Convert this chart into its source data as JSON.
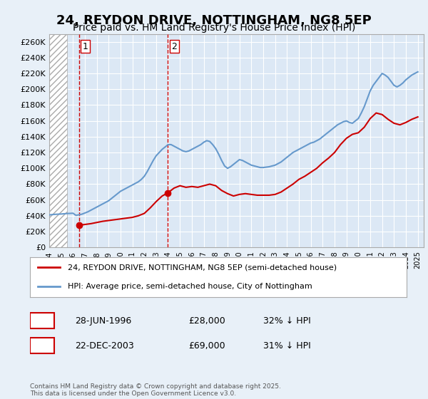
{
  "title": "24, REYDON DRIVE, NOTTINGHAM, NG8 5EP",
  "subtitle": "Price paid vs. HM Land Registry's House Price Index (HPI)",
  "title_fontsize": 13,
  "subtitle_fontsize": 10,
  "bg_color": "#e8f0f8",
  "plot_bg_color": "#dce8f5",
  "grid_color": "#ffffff",
  "ylim": [
    0,
    270000
  ],
  "yticks": [
    0,
    20000,
    40000,
    60000,
    80000,
    100000,
    120000,
    140000,
    160000,
    180000,
    200000,
    220000,
    240000,
    260000
  ],
  "xlim_start": 1994.0,
  "xlim_end": 2025.5,
  "hatch_end": 1995.5,
  "red_line_color": "#cc0000",
  "blue_line_color": "#6699cc",
  "vline_color": "#cc0000",
  "purchase1_year": 1996.49,
  "purchase1_price": 28000,
  "purchase2_year": 2003.98,
  "purchase2_price": 69000,
  "legend_label1": "24, REYDON DRIVE, NOTTINGHAM, NG8 5EP (semi-detached house)",
  "legend_label2": "HPI: Average price, semi-detached house, City of Nottingham",
  "table_row1": [
    "1",
    "28-JUN-1996",
    "£28,000",
    "32% ↓ HPI"
  ],
  "table_row2": [
    "2",
    "22-DEC-2003",
    "£69,000",
    "31% ↓ HPI"
  ],
  "footnote": "Contains HM Land Registry data © Crown copyright and database right 2025.\nThis data is licensed under the Open Government Licence v3.0.",
  "hpi_years": [
    1994.0,
    1994.25,
    1994.5,
    1994.75,
    1995.0,
    1995.25,
    1995.5,
    1995.75,
    1996.0,
    1996.25,
    1996.5,
    1996.75,
    1997.0,
    1997.25,
    1997.5,
    1997.75,
    1998.0,
    1998.25,
    1998.5,
    1998.75,
    1999.0,
    1999.25,
    1999.5,
    1999.75,
    2000.0,
    2000.25,
    2000.5,
    2000.75,
    2001.0,
    2001.25,
    2001.5,
    2001.75,
    2002.0,
    2002.25,
    2002.5,
    2002.75,
    2003.0,
    2003.25,
    2003.5,
    2003.75,
    2004.0,
    2004.25,
    2004.5,
    2004.75,
    2005.0,
    2005.25,
    2005.5,
    2005.75,
    2006.0,
    2006.25,
    2006.5,
    2006.75,
    2007.0,
    2007.25,
    2007.5,
    2007.75,
    2008.0,
    2008.25,
    2008.5,
    2008.75,
    2009.0,
    2009.25,
    2009.5,
    2009.75,
    2010.0,
    2010.25,
    2010.5,
    2010.75,
    2011.0,
    2011.25,
    2011.5,
    2011.75,
    2012.0,
    2012.25,
    2012.5,
    2012.75,
    2013.0,
    2013.25,
    2013.5,
    2013.75,
    2014.0,
    2014.25,
    2014.5,
    2014.75,
    2015.0,
    2015.25,
    2015.5,
    2015.75,
    2016.0,
    2016.25,
    2016.5,
    2016.75,
    2017.0,
    2017.25,
    2017.5,
    2017.75,
    2018.0,
    2018.25,
    2018.5,
    2018.75,
    2019.0,
    2019.25,
    2019.5,
    2019.75,
    2020.0,
    2020.25,
    2020.5,
    2020.75,
    2021.0,
    2021.25,
    2021.5,
    2021.75,
    2022.0,
    2022.25,
    2022.5,
    2022.75,
    2023.0,
    2023.25,
    2023.5,
    2023.75,
    2024.0,
    2024.25,
    2024.5,
    2024.75,
    2025.0
  ],
  "hpi_values": [
    41000,
    41500,
    41800,
    42000,
    42200,
    42500,
    42800,
    43000,
    43200,
    40500,
    41200,
    42000,
    43500,
    45000,
    47000,
    49000,
    51000,
    53000,
    55000,
    57000,
    59000,
    62000,
    65000,
    68000,
    71000,
    73000,
    75000,
    77000,
    79000,
    81000,
    83000,
    86000,
    90000,
    96000,
    103000,
    110000,
    116000,
    120000,
    124000,
    127000,
    130000,
    130000,
    128000,
    126000,
    124000,
    122000,
    121000,
    122000,
    124000,
    126000,
    128000,
    130000,
    133000,
    135000,
    134000,
    130000,
    125000,
    118000,
    110000,
    103000,
    100000,
    102000,
    105000,
    108000,
    111000,
    110000,
    108000,
    106000,
    104000,
    103000,
    102000,
    101000,
    101000,
    101500,
    102000,
    103000,
    104000,
    106000,
    108000,
    111000,
    114000,
    117000,
    120000,
    122000,
    124000,
    126000,
    128000,
    130000,
    132000,
    133000,
    135000,
    137000,
    140000,
    143000,
    146000,
    149000,
    152000,
    155000,
    157000,
    159000,
    160000,
    158000,
    157000,
    160000,
    163000,
    170000,
    178000,
    188000,
    198000,
    205000,
    210000,
    215000,
    220000,
    218000,
    215000,
    210000,
    205000,
    203000,
    205000,
    208000,
    212000,
    215000,
    218000,
    220000,
    222000
  ],
  "red_years": [
    1996.49,
    1997.0,
    1997.5,
    1998.0,
    1998.5,
    1999.0,
    1999.5,
    2000.0,
    2000.5,
    2001.0,
    2001.5,
    2002.0,
    2002.5,
    2003.0,
    2003.5,
    2003.98,
    2004.5,
    2005.0,
    2005.5,
    2006.0,
    2006.5,
    2007.0,
    2007.5,
    2008.0,
    2008.5,
    2009.0,
    2009.5,
    2010.0,
    2010.5,
    2011.0,
    2011.5,
    2012.0,
    2012.5,
    2013.0,
    2013.5,
    2014.0,
    2014.5,
    2015.0,
    2015.5,
    2016.0,
    2016.5,
    2017.0,
    2017.5,
    2018.0,
    2018.5,
    2019.0,
    2019.5,
    2020.0,
    2020.5,
    2021.0,
    2021.5,
    2022.0,
    2022.5,
    2023.0,
    2023.5,
    2024.0,
    2024.5,
    2025.0
  ],
  "red_values": [
    28000,
    29000,
    30000,
    31500,
    33000,
    34000,
    35000,
    36000,
    37000,
    38000,
    40000,
    43000,
    50000,
    58000,
    65000,
    69000,
    75000,
    78000,
    76000,
    77000,
    76000,
    78000,
    80000,
    78000,
    72000,
    68000,
    65000,
    67000,
    68000,
    67000,
    66000,
    66000,
    66000,
    67000,
    70000,
    75000,
    80000,
    86000,
    90000,
    95000,
    100000,
    107000,
    113000,
    120000,
    130000,
    138000,
    143000,
    145000,
    152000,
    163000,
    170000,
    168000,
    162000,
    157000,
    155000,
    158000,
    162000,
    165000
  ]
}
